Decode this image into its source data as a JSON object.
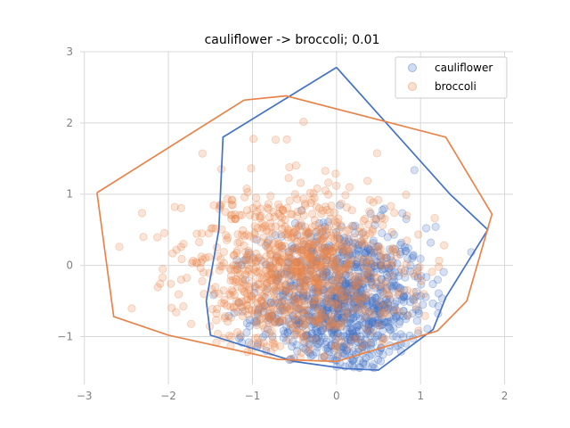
{
  "chart_data": {
    "type": "scatter",
    "title": "cauliflower -> broccoli; 0.01",
    "xlabel": "",
    "ylabel": "",
    "xlim": [
      -3.05,
      2.1
    ],
    "ylim": [
      -1.67,
      3.0
    ],
    "x_ticks": [
      -3,
      -2,
      -1,
      0,
      1,
      2
    ],
    "y_ticks": [
      -1,
      0,
      1,
      2,
      3
    ],
    "grid": true,
    "legend_position": "top-right",
    "series": [
      {
        "name": "cauliflower",
        "color": "#4472C4",
        "marker": "circle-translucent",
        "distribution": {
          "x_mean": 0.1,
          "x_sd": 0.5,
          "y_mean": -0.55,
          "y_sd": 0.55,
          "count": 1000
        },
        "hull": [
          [
            0.0,
            2.78
          ],
          [
            1.35,
            1.0
          ],
          [
            1.8,
            0.5
          ],
          [
            1.3,
            -0.45
          ],
          [
            1.15,
            -0.9
          ],
          [
            0.5,
            -1.47
          ],
          [
            0.1,
            -1.45
          ],
          [
            -0.5,
            -1.35
          ],
          [
            -1.5,
            -0.98
          ],
          [
            -1.55,
            -0.5
          ],
          [
            -1.4,
            0.5
          ],
          [
            -1.35,
            1.8
          ],
          [
            0.0,
            2.78
          ]
        ]
      },
      {
        "name": "broccoli",
        "color": "#E8844A",
        "marker": "circle-translucent",
        "distribution": {
          "x_mean": -0.5,
          "x_sd": 0.65,
          "y_mean": -0.1,
          "y_sd": 0.6,
          "count": 1000
        },
        "hull": [
          [
            -2.85,
            1.02
          ],
          [
            -1.1,
            2.32
          ],
          [
            -0.6,
            2.38
          ],
          [
            1.3,
            1.8
          ],
          [
            1.85,
            0.72
          ],
          [
            1.55,
            -0.5
          ],
          [
            1.2,
            -0.92
          ],
          [
            0.0,
            -1.35
          ],
          [
            -0.7,
            -1.32
          ],
          [
            -2.0,
            -0.98
          ],
          [
            -2.65,
            -0.72
          ],
          [
            -2.85,
            1.02
          ]
        ]
      }
    ]
  }
}
